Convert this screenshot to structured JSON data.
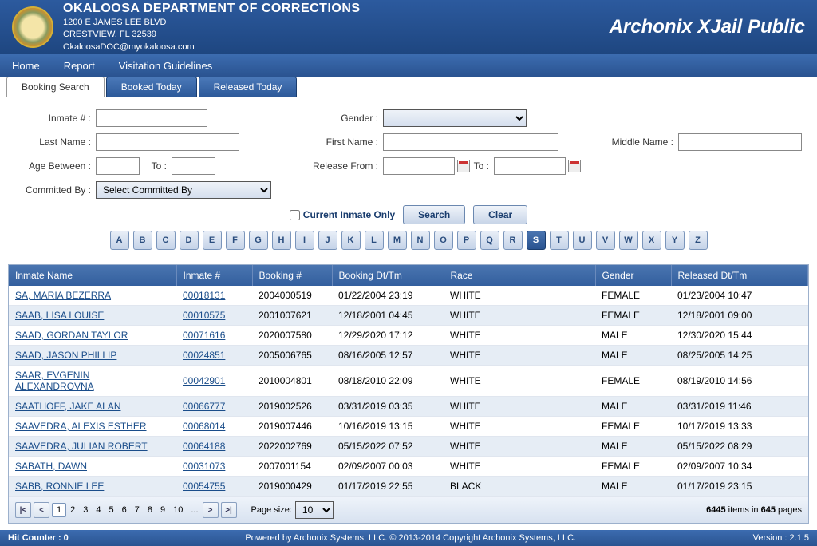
{
  "header": {
    "department": "OKALOOSA DEPARTMENT OF CORRECTIONS",
    "address1": "1200 E JAMES LEE BLVD",
    "address2": "CRESTVIEW, FL 32539",
    "email": "OkaloosaDOC@myokaloosa.com",
    "product": "Archonix XJail Public"
  },
  "nav": {
    "home": "Home",
    "report": "Report",
    "visitation": "Visitation Guidelines"
  },
  "tabs": {
    "booking": "Booking Search",
    "booked": "Booked Today",
    "released": "Released Today"
  },
  "labels": {
    "inmateNum": "Inmate # :",
    "lastName": "Last Name :",
    "ageBetween": "Age Between :",
    "to": "To :",
    "committedBy": "Committed By :",
    "gender": "Gender :",
    "firstName": "First Name :",
    "releaseFrom": "Release From :",
    "middleName": "Middle Name :",
    "committedPlaceholder": "Select Committed By",
    "currentOnly": "Current Inmate Only",
    "search": "Search",
    "clear": "Clear",
    "pageSize": "Page size:",
    "pageSizeVal": "10"
  },
  "alphabet": [
    "A",
    "B",
    "C",
    "D",
    "E",
    "F",
    "G",
    "H",
    "I",
    "J",
    "K",
    "L",
    "M",
    "N",
    "O",
    "P",
    "Q",
    "R",
    "S",
    "T",
    "U",
    "V",
    "W",
    "X",
    "Y",
    "Z"
  ],
  "alphaActive": "S",
  "columns": {
    "name": "Inmate Name",
    "num": "Inmate #",
    "booking": "Booking #",
    "bookdt": "Booking Dt/Tm",
    "race": "Race",
    "gender": "Gender",
    "reldt": "Released Dt/Tm"
  },
  "rows": [
    {
      "name": "SA, MARIA BEZERRA",
      "num": "00018131",
      "booking": "2004000519",
      "bookdt": "01/22/2004 23:19",
      "race": "WHITE",
      "gender": "FEMALE",
      "reldt": "01/23/2004 10:47"
    },
    {
      "name": "SAAB, LISA LOUISE",
      "num": "00010575",
      "booking": "2001007621",
      "bookdt": "12/18/2001 04:45",
      "race": "WHITE",
      "gender": "FEMALE",
      "reldt": "12/18/2001 09:00"
    },
    {
      "name": "SAAD, GORDAN TAYLOR",
      "num": "00071616",
      "booking": "2020007580",
      "bookdt": "12/29/2020 17:12",
      "race": "WHITE",
      "gender": "MALE",
      "reldt": "12/30/2020 15:44"
    },
    {
      "name": "SAAD, JASON PHILLIP",
      "num": "00024851",
      "booking": "2005006765",
      "bookdt": "08/16/2005 12:57",
      "race": "WHITE",
      "gender": "MALE",
      "reldt": "08/25/2005 14:25"
    },
    {
      "name": "SAAR, EVGENIN ALEXANDROVNA",
      "num": "00042901",
      "booking": "2010004801",
      "bookdt": "08/18/2010 22:09",
      "race": "WHITE",
      "gender": "FEMALE",
      "reldt": "08/19/2010 14:56"
    },
    {
      "name": "SAATHOFF, JAKE ALAN",
      "num": "00066777",
      "booking": "2019002526",
      "bookdt": "03/31/2019 03:35",
      "race": "WHITE",
      "gender": "MALE",
      "reldt": "03/31/2019 11:46"
    },
    {
      "name": "SAAVEDRA, ALEXIS ESTHER",
      "num": "00068014",
      "booking": "2019007446",
      "bookdt": "10/16/2019 13:15",
      "race": "WHITE",
      "gender": "FEMALE",
      "reldt": "10/17/2019 13:33"
    },
    {
      "name": "SAAVEDRA, JULIAN ROBERT",
      "num": "00064188",
      "booking": "2022002769",
      "bookdt": "05/15/2022 07:52",
      "race": "WHITE",
      "gender": "MALE",
      "reldt": "05/15/2022 08:29"
    },
    {
      "name": "SABATH, DAWN",
      "num": "00031073",
      "booking": "2007001154",
      "bookdt": "02/09/2007 00:03",
      "race": "WHITE",
      "gender": "FEMALE",
      "reldt": "02/09/2007 10:34"
    },
    {
      "name": "SABB, RONNIE LEE",
      "num": "00054755",
      "booking": "2019000429",
      "bookdt": "01/17/2019 22:55",
      "race": "BLACK",
      "gender": "MALE",
      "reldt": "01/17/2019 23:15"
    }
  ],
  "pager": {
    "pages": [
      "1",
      "2",
      "3",
      "4",
      "5",
      "6",
      "7",
      "8",
      "9",
      "10"
    ],
    "ellipsis": "...",
    "items": "6445",
    "itemsTxt1": " items in ",
    "pagesCount": "645",
    "itemsTxt2": " pages"
  },
  "footer": {
    "hit": "Hit Counter : 0",
    "copy": "Powered by Archonix Systems, LLC. © 2013-2014 Copyright Archonix Systems, LLC.",
    "ver": "Version : 2.1.5"
  }
}
